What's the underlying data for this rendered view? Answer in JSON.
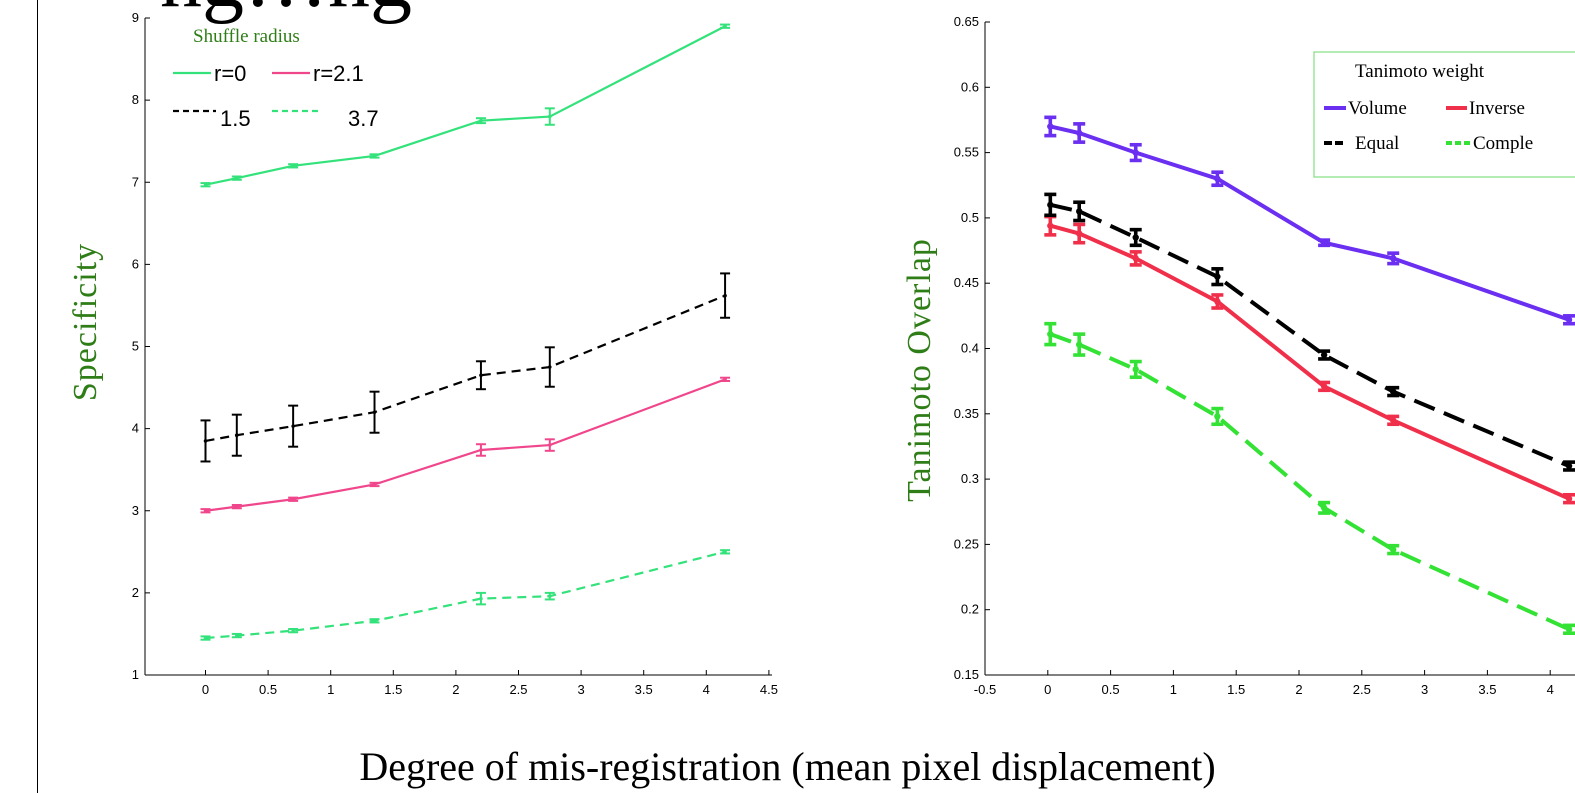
{
  "slide": {
    "title_fragment": "ng…ng",
    "caption": "Degree of mis-registration (mean pixel displacement)"
  },
  "chart_data": [
    {
      "type": "line",
      "title": "",
      "xlabel": "",
      "ylabel": "Specificity",
      "xlim": [
        -0.5,
        4.5
      ],
      "ylim": [
        1,
        9
      ],
      "xticks": [
        "0",
        "0.5",
        "1",
        "1.5",
        "2",
        "2.5",
        "3",
        "3.5",
        "4",
        "4.5"
      ],
      "yticks": [
        "1",
        "2",
        "3",
        "4",
        "5",
        "6",
        "7",
        "8",
        "9"
      ],
      "legend": {
        "title": "Shuffle radius",
        "labels": [
          "r=0",
          "r=2.1",
          "1.5",
          "3.7"
        ],
        "placement": "top-left"
      },
      "x": [
        0,
        0.25,
        0.7,
        1.35,
        2.2,
        2.75,
        4.15
      ],
      "series": [
        {
          "name": "r=0",
          "color": "#33e27a",
          "dash": "solid",
          "values": [
            6.97,
            7.05,
            7.2,
            7.32,
            7.75,
            7.8,
            8.9
          ],
          "err": [
            0.02,
            0.02,
            0.02,
            0.02,
            0.03,
            0.1,
            0.02
          ]
        },
        {
          "name": "r=2.1",
          "color": "#f0468c",
          "dash": "solid",
          "values": [
            3.0,
            3.05,
            3.14,
            3.32,
            3.74,
            3.8,
            4.6
          ],
          "err": [
            0.02,
            0.02,
            0.02,
            0.02,
            0.07,
            0.07,
            0.02
          ]
        },
        {
          "name": "1.5",
          "color": "#000000",
          "dash": "dashed",
          "values": [
            3.85,
            3.92,
            4.03,
            4.2,
            4.65,
            4.75,
            5.62
          ],
          "err": [
            0.25,
            0.25,
            0.25,
            0.25,
            0.17,
            0.24,
            0.27
          ]
        },
        {
          "name": "3.7",
          "color": "#33e27a",
          "dash": "dashed",
          "values": [
            1.45,
            1.48,
            1.54,
            1.66,
            1.93,
            1.96,
            2.5
          ],
          "err": [
            0.02,
            0.02,
            0.02,
            0.02,
            0.07,
            0.04,
            0.02
          ]
        }
      ]
    },
    {
      "type": "line",
      "title": "",
      "xlabel": "",
      "ylabel": "Tanimoto Overlap",
      "xlim": [
        -0.5,
        4.5
      ],
      "ylim": [
        0.15,
        0.65
      ],
      "xticks": [
        "-0.5",
        "0",
        "0.5",
        "1",
        "1.5",
        "2",
        "2.5",
        "3",
        "3.5",
        "4"
      ],
      "yticks": [
        "0.15",
        "0.2",
        "0.25",
        "0.3",
        "0.35",
        "0.4",
        "0.45",
        "0.5",
        "0.55",
        "0.6",
        "0.65"
      ],
      "legend": {
        "title": "Tanimoto weight",
        "labels": [
          "Volume",
          "Inverse",
          "Equal",
          "Comple"
        ],
        "placement": "top-right"
      },
      "x": [
        0.02,
        0.25,
        0.7,
        1.35,
        2.2,
        2.75,
        4.15
      ],
      "series": [
        {
          "name": "Volume",
          "color": "#6a2ff0",
          "dash": "solid",
          "values": [
            0.57,
            0.565,
            0.55,
            0.53,
            0.481,
            0.469,
            0.422
          ],
          "err": [
            0.007,
            0.007,
            0.006,
            0.005,
            0.002,
            0.004,
            0.003
          ]
        },
        {
          "name": "Inverse",
          "color": "#f0304a",
          "dash": "solid",
          "values": [
            0.494,
            0.488,
            0.469,
            0.436,
            0.371,
            0.345,
            0.285
          ],
          "err": [
            0.007,
            0.007,
            0.005,
            0.005,
            0.003,
            0.003,
            0.003
          ]
        },
        {
          "name": "Equal",
          "color": "#000000",
          "dash": "dashed",
          "values": [
            0.51,
            0.505,
            0.485,
            0.455,
            0.395,
            0.367,
            0.31
          ],
          "err": [
            0.008,
            0.007,
            0.006,
            0.006,
            0.003,
            0.003,
            0.003
          ]
        },
        {
          "name": "Comple",
          "color": "#33e234",
          "dash": "dashed",
          "values": [
            0.411,
            0.403,
            0.384,
            0.348,
            0.278,
            0.246,
            0.185
          ],
          "err": [
            0.008,
            0.008,
            0.006,
            0.006,
            0.004,
            0.003,
            0.003
          ]
        }
      ]
    }
  ]
}
